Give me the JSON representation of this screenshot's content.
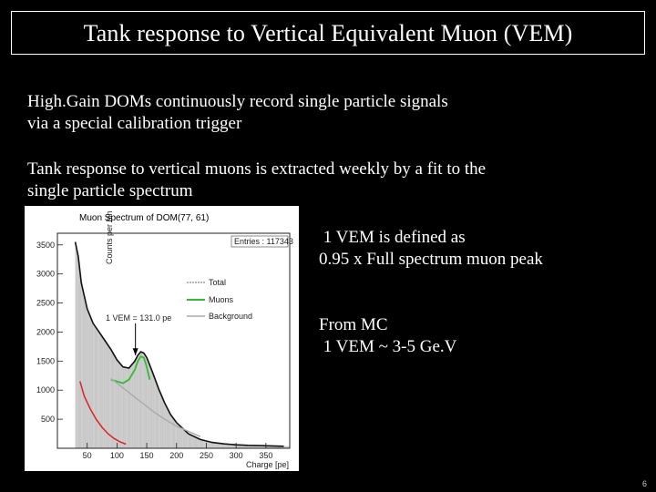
{
  "slide": {
    "title": "Tank response to Vertical Equivalent Muon (VEM)",
    "paragraph1": [
      "High.Gain DOMs continuously record single particle signals",
      "via a special calibration trigger"
    ],
    "paragraph2": [
      "Tank response to vertical muons is extracted weekly by a fit to the",
      "single particle spectrum"
    ],
    "note1": [
      " 1 VEM is defined as",
      "0.95 x Full spectrum muon peak"
    ],
    "note2": [
      "From MC",
      " 1 VEM ~ 3-5 Ge.V"
    ],
    "page_number": "6"
  },
  "chart_data": {
    "type": "line",
    "title": "Muon Spectrum of DOM(77, 61)",
    "xlabel": "Charge [pe]",
    "ylabel": "Counts per bin",
    "xlim": [
      0,
      390
    ],
    "ylim": [
      0,
      3700
    ],
    "xticks": [
      50,
      100,
      150,
      200,
      250,
      300,
      350
    ],
    "yticks": [
      500,
      1000,
      1500,
      2000,
      2500,
      3000,
      3500
    ],
    "stats_box": "Entries : 117343",
    "annotation": "1 VEM = 131.0 pe",
    "vem_value": 131.0,
    "legend": [
      "Total",
      "Muons",
      "Background"
    ],
    "colors": {
      "total": "#111111",
      "muons": "#33bb33",
      "background": "#aaaaaa",
      "electromagnetic": "#dd2222",
      "histogram": "#c8c8c8"
    },
    "series": [
      {
        "name": "Total",
        "x": [
          30,
          35,
          40,
          50,
          60,
          70,
          80,
          90,
          100,
          110,
          120,
          130,
          135,
          140,
          145,
          150,
          160,
          170,
          180,
          190,
          200,
          220,
          240,
          260,
          280,
          300,
          320,
          340,
          360,
          380
        ],
        "values": [
          3550,
          3300,
          2850,
          2400,
          2150,
          2000,
          1850,
          1700,
          1520,
          1400,
          1380,
          1500,
          1600,
          1660,
          1640,
          1560,
          1300,
          1020,
          780,
          580,
          440,
          250,
          150,
          100,
          75,
          60,
          50,
          45,
          40,
          35
        ]
      },
      {
        "name": "Muons",
        "x": [
          90,
          100,
          110,
          120,
          130,
          135,
          140,
          145,
          150,
          155
        ],
        "values": [
          1180,
          1150,
          1120,
          1180,
          1350,
          1500,
          1580,
          1560,
          1400,
          1180
        ]
      },
      {
        "name": "Background",
        "x": [
          90,
          100,
          110,
          120,
          130,
          140,
          150,
          160,
          180,
          200,
          240
        ],
        "values": [
          1200,
          1120,
          1040,
          960,
          880,
          800,
          720,
          640,
          500,
          380,
          200
        ]
      },
      {
        "name": "Electromagnetic",
        "x": [
          38,
          45,
          55,
          65,
          75,
          85,
          95,
          105,
          115
        ],
        "values": [
          1150,
          900,
          680,
          500,
          360,
          250,
          170,
          110,
          70
        ]
      }
    ]
  }
}
